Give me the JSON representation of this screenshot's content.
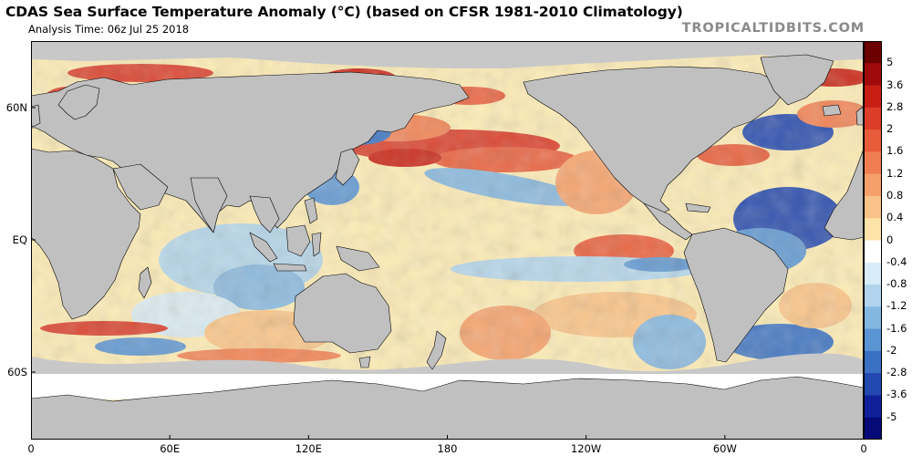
{
  "header": {
    "title": "CDAS Sea Surface Temperature Anomaly (°C) (based on CFSR 1981-2010 Climatology)",
    "analysis_time": "Analysis Time: 06z Jul 25 2018",
    "watermark": "TROPICALTIDBITS.COM"
  },
  "map": {
    "land_color": "#c0c0c0",
    "ice_color": "#c8c8c8",
    "lat_labels": [
      {
        "text": "60N",
        "lat": 60
      },
      {
        "text": "EQ",
        "lat": 0
      },
      {
        "text": "60S",
        "lat": -60
      }
    ],
    "lon_labels": [
      {
        "text": "0",
        "lon": 0
      },
      {
        "text": "60E",
        "lon": 60
      },
      {
        "text": "120E",
        "lon": 120
      },
      {
        "text": "180",
        "lon": 180
      },
      {
        "text": "120W",
        "lon": 240
      },
      {
        "text": "60W",
        "lon": 300
      },
      {
        "text": "0",
        "lon": 360
      }
    ]
  },
  "colorbar": {
    "labels": [
      "5",
      "3.6",
      "2.8",
      "2",
      "1.6",
      "1.2",
      "0.8",
      "0.4",
      "0",
      "-0.4",
      "-0.8",
      "-1.2",
      "-1.6",
      "-2",
      "-2.8",
      "-3.6",
      "-5"
    ],
    "colors": [
      "#6b0000",
      "#a00a0a",
      "#c81e14",
      "#dc3c28",
      "#e85c3c",
      "#f07e52",
      "#f5a06c",
      "#f9c288",
      "#fde3a8",
      "#ffffff",
      "#d8ecf7",
      "#b0d4ee",
      "#84b6e2",
      "#5a94d4",
      "#3a70c4",
      "#2248b0",
      "#10209a",
      "#050a78"
    ]
  }
}
